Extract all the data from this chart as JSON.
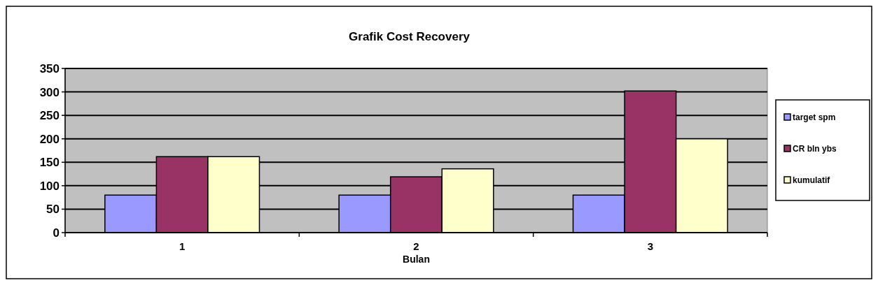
{
  "chart_data": {
    "type": "bar",
    "title": "Grafik Cost Recovery",
    "xlabel": "Bulan",
    "categories": [
      "1",
      "2",
      "3"
    ],
    "series": [
      {
        "name": "target spm",
        "color": "#9999ff",
        "values": [
          80,
          80,
          80
        ]
      },
      {
        "name": "CR bln ybs",
        "color": "#993366",
        "values": [
          162,
          119,
          302
        ]
      },
      {
        "name": "kumulatif",
        "color": "#ffffcc",
        "values": [
          162,
          136,
          200
        ]
      }
    ],
    "ylim": [
      0,
      350
    ],
    "yticks": [
      0,
      50,
      100,
      150,
      200,
      250,
      300,
      350
    ],
    "grid": "y",
    "legend": "right"
  }
}
